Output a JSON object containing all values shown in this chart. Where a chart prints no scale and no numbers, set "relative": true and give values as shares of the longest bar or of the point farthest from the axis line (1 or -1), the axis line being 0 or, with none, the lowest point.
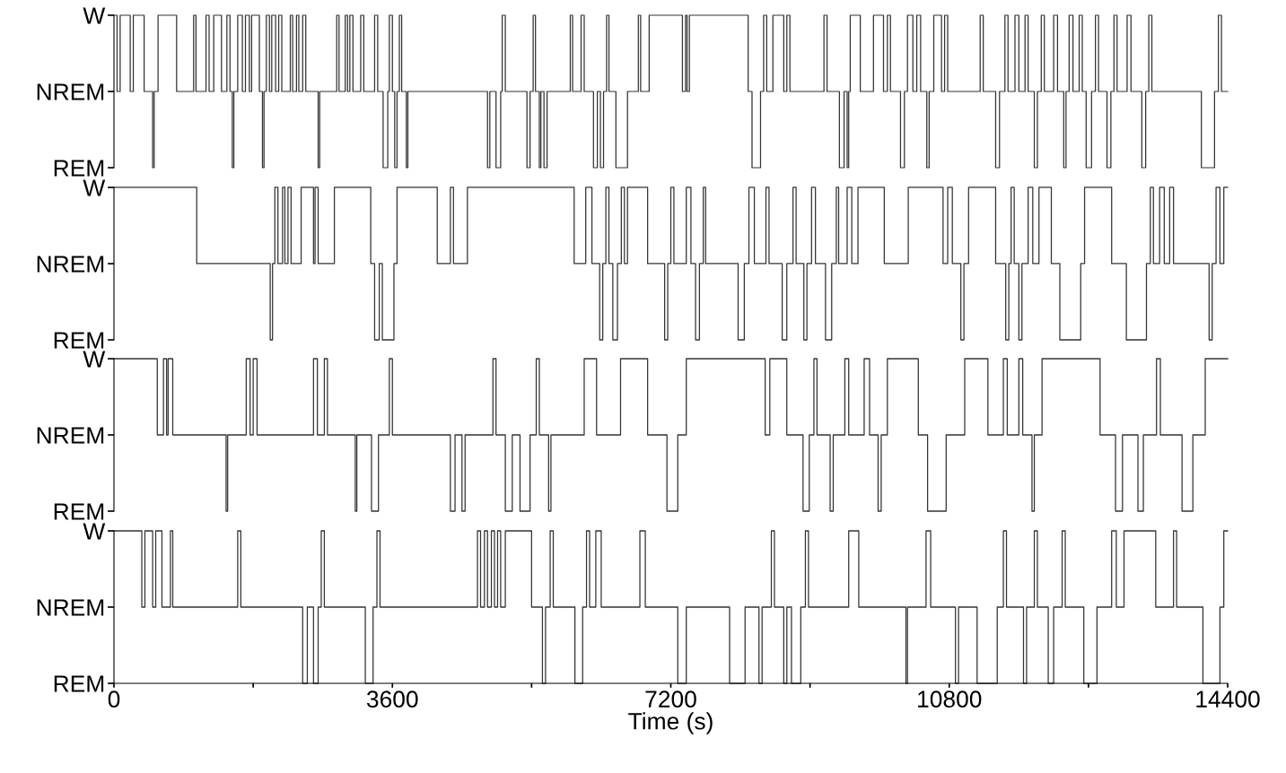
{
  "chart_data": [
    {
      "type": "step",
      "relative": true,
      "xlim": [
        0,
        14400
      ],
      "tick_labels": "y",
      "y_categories": [
        "W",
        "NREM",
        "REM"
      ],
      "series": [
        {
          "color": "#333333",
          "x": [
            0,
            40,
            80,
            210,
            250,
            390,
            500,
            520,
            570,
            810,
            1030,
            1060,
            1190,
            1230,
            1290,
            1390,
            1460,
            1500,
            1530,
            1550,
            1600,
            1660,
            1700,
            1750,
            1780,
            1880,
            1920,
            1940,
            1970,
            2010,
            2040,
            2090,
            2130,
            2170,
            2280,
            2310,
            2360,
            2390,
            2440,
            2480,
            2640,
            2660,
            2880,
            2910,
            2990,
            3020,
            3050,
            3090,
            3190,
            3230,
            3370,
            3410,
            3480,
            3540,
            3560,
            3600,
            3630,
            3660,
            3690,
            3720,
            3780,
            3800,
            4830,
            4860,
            4940,
            5000,
            5020,
            5060,
            5340,
            5380,
            5420,
            5450,
            5500,
            5520,
            5560,
            5600,
            5900,
            5930,
            6040,
            6080,
            6200,
            6250,
            6290,
            6330,
            6370,
            6400,
            6490,
            6640,
            6780,
            6810,
            6920,
            7350,
            7390,
            7410,
            7440,
            8200,
            8250,
            8360,
            8400,
            8440,
            8520,
            8660,
            8700,
            8740,
            9180,
            9220,
            9380,
            9440,
            9480,
            9500,
            9520,
            9650,
            9820,
            9950,
            10000,
            10040,
            10170,
            10220,
            10260,
            10330,
            10380,
            10430,
            10510,
            10540,
            10600,
            10700,
            10740,
            10780,
            11200,
            11240,
            11400,
            11450,
            11520,
            11560,
            11650,
            11700,
            11780,
            11820,
            11900,
            11940,
            11990,
            12030,
            12150,
            12200,
            12280,
            12310,
            12350,
            12400,
            12480,
            12520,
            12570,
            12640,
            12690,
            12730,
            12840,
            12890,
            12930,
            12970,
            13100,
            13150,
            13290,
            13340,
            13380,
            13420,
            14060,
            14230,
            14280,
            14320,
            14400
          ],
          "values": [
            1,
            0.5,
            1,
            0.5,
            1,
            0.5,
            0,
            0.5,
            1,
            0.5,
            1,
            0.5,
            1,
            0.5,
            1,
            0.5,
            1,
            0.5,
            0,
            0.5,
            1,
            0.5,
            1,
            0.5,
            1,
            0.5,
            0,
            0.5,
            1,
            0.5,
            1,
            0.5,
            1,
            0.5,
            1,
            0.5,
            1,
            0.5,
            1,
            0.5,
            0,
            0.5,
            1,
            0.5,
            1,
            0.5,
            1,
            0.5,
            1,
            0.5,
            1,
            0.5,
            0,
            0.5,
            1,
            0.5,
            0,
            0.5,
            1,
            0.5,
            0,
            0.5,
            0,
            0.5,
            0,
            0.5,
            1,
            0.5,
            0,
            0.5,
            1,
            0.5,
            0,
            0.5,
            0,
            0.5,
            1,
            0.5,
            1,
            0.5,
            0,
            0.5,
            0,
            0.5,
            1,
            0.5,
            0,
            0.5,
            1,
            0.5,
            1,
            0.5,
            1,
            0.5,
            1,
            0.5,
            0,
            0.5,
            1,
            0.5,
            1,
            0.5,
            1,
            0.5,
            1,
            0.5,
            0,
            0.5,
            0,
            0.5,
            1,
            0.5,
            1,
            0.5,
            1,
            0.5,
            0,
            0.5,
            1,
            0.5,
            1,
            0.5,
            0,
            0.5,
            1,
            0.5,
            1,
            0.5,
            1,
            0.5,
            0,
            0.5,
            1,
            0.5,
            1,
            0.5,
            1,
            0.5,
            0,
            0.5,
            1,
            0.5,
            1,
            0.5,
            0,
            0.5,
            1,
            0.5,
            1,
            0.5,
            0,
            0.5,
            1,
            0.5,
            0,
            0.5,
            1,
            0.5,
            1,
            0.5,
            0,
            0.5,
            1,
            0.5,
            0,
            0.5,
            1,
            0.5,
            0.5
          ]
        }
      ]
    },
    {
      "type": "step",
      "relative": true,
      "xlim": [
        0,
        14400
      ],
      "tick_labels": "y",
      "y_categories": [
        "W",
        "NREM",
        "REM"
      ],
      "series": [
        {
          "color": "#333333",
          "x": [
            0,
            1070,
            2020,
            2050,
            2080,
            2120,
            2180,
            2210,
            2250,
            2290,
            2420,
            2580,
            2600,
            2640,
            2850,
            3320,
            3370,
            3430,
            3470,
            3620,
            3660,
            4180,
            4350,
            4390,
            4570,
            5950,
            6100,
            6180,
            6280,
            6320,
            6360,
            6400,
            6450,
            6510,
            6560,
            6600,
            6640,
            6900,
            7120,
            7160,
            7200,
            7240,
            7400,
            7460,
            7520,
            7570,
            7620,
            7650,
            8070,
            8150,
            8210,
            8280,
            8430,
            8470,
            8640,
            8700,
            8780,
            8820,
            8920,
            8960,
            9020,
            9070,
            9200,
            9280,
            9340,
            9370,
            9480,
            9540,
            9620,
            9960,
            10270,
            10720,
            10780,
            10840,
            10950,
            10990,
            11050,
            11400,
            11530,
            11570,
            11600,
            11640,
            11700,
            11740,
            11820,
            11880,
            11960,
            12120,
            12230,
            12500,
            12550,
            12900,
            13090,
            13350,
            13400,
            13440,
            13520,
            13580,
            13650,
            13700,
            14160,
            14200,
            14250,
            14300,
            14350,
            14400
          ],
          "values": [
            1,
            0.5,
            0,
            0.5,
            1,
            0.5,
            1,
            0.5,
            1,
            0.5,
            1,
            0.5,
            1,
            0.5,
            1,
            0.5,
            0,
            0.5,
            0,
            0.5,
            1,
            0.5,
            1,
            0.5,
            1,
            0.5,
            1,
            0.5,
            0,
            0.5,
            1,
            0.5,
            0,
            0.5,
            1,
            0.5,
            1,
            0.5,
            0,
            0.5,
            1,
            0.5,
            1,
            0.5,
            0,
            0.5,
            1,
            0.5,
            0,
            0.5,
            1,
            0.5,
            1,
            0.5,
            0,
            0.5,
            1,
            0.5,
            0,
            0.5,
            1,
            0.5,
            0,
            0.5,
            1,
            0.5,
            1,
            0.5,
            1,
            0.5,
            1,
            0.5,
            1,
            0.5,
            0,
            0.5,
            1,
            0.5,
            0,
            0.5,
            1,
            0.5,
            0,
            0.5,
            1,
            0.5,
            1,
            0.5,
            0,
            0.5,
            1,
            0.5,
            0,
            0.5,
            1,
            0.5,
            1,
            0.5,
            1,
            0.5,
            0,
            0.5,
            1,
            0.5,
            1,
            1
          ]
        }
      ]
    },
    {
      "type": "step",
      "relative": true,
      "xlim": [
        0,
        14400
      ],
      "tick_labels": "y",
      "y_categories": [
        "W",
        "NREM",
        "REM"
      ],
      "series": [
        {
          "color": "#333333",
          "x": [
            0,
            560,
            640,
            680,
            700,
            760,
            1450,
            1470,
            1710,
            1760,
            1800,
            1850,
            2580,
            2630,
            2720,
            2760,
            3120,
            3140,
            3330,
            3420,
            3560,
            3600,
            4350,
            4410,
            4500,
            4540,
            4900,
            4940,
            5060,
            5150,
            5250,
            5380,
            5460,
            5500,
            5620,
            5650,
            6080,
            6240,
            6550,
            6900,
            7150,
            7290,
            7400,
            8420,
            8480,
            8700,
            8910,
            8990,
            9050,
            9090,
            9260,
            9300,
            9450,
            9500,
            9700,
            9770,
            9880,
            9920,
            10000,
            10400,
            10520,
            10760,
            11000,
            11300,
            11500,
            11550,
            11700,
            11750,
            11870,
            11900,
            12000,
            12750,
            12950,
            13040,
            13240,
            13310,
            13480,
            13530,
            13810,
            13950,
            14110,
            14400
          ],
          "values": [
            1,
            0.5,
            1,
            0.5,
            1,
            0.5,
            0,
            0.5,
            1,
            0.5,
            1,
            0.5,
            1,
            0.5,
            1,
            0.5,
            0,
            0.5,
            0,
            0.5,
            1,
            0.5,
            0,
            0.5,
            0,
            0.5,
            1,
            0.5,
            0,
            0.5,
            0,
            0.5,
            1,
            0.5,
            0,
            0.5,
            1,
            0.5,
            1,
            0.5,
            0,
            0.5,
            1,
            0.5,
            1,
            0.5,
            0,
            0.5,
            1,
            0.5,
            0,
            0.5,
            1,
            0.5,
            1,
            0.5,
            0,
            0.5,
            1,
            0.5,
            0,
            0.5,
            1,
            0.5,
            1,
            0.5,
            1,
            0.5,
            0,
            0.5,
            1,
            0.5,
            0,
            0.5,
            0,
            0.5,
            1,
            0.5,
            0,
            0.5,
            1,
            1
          ]
        }
      ]
    },
    {
      "type": "step",
      "relative": true,
      "xlim": [
        0,
        14400
      ],
      "xlabel": "Time (s)",
      "y_categories": [
        "W",
        "NREM",
        "REM"
      ],
      "xticks": [
        0,
        {
          "value": 1800,
          "label": null
        },
        3600,
        {
          "value": 5400,
          "label": null
        },
        7200,
        {
          "value": 9000,
          "label": null
        },
        10800,
        {
          "value": 12600,
          "label": null
        },
        14400
      ],
      "series": [
        {
          "color": "#333333",
          "x": [
            0,
            360,
            400,
            500,
            540,
            620,
            730,
            760,
            1600,
            1640,
            2440,
            2500,
            2580,
            2640,
            2680,
            2720,
            3250,
            3350,
            3400,
            3440,
            4700,
            4740,
            4790,
            4830,
            4880,
            4920,
            4960,
            5000,
            5060,
            5400,
            5540,
            5580,
            5640,
            5680,
            5960,
            6060,
            6110,
            6150,
            6230,
            6300,
            6800,
            6870,
            7290,
            7400,
            7960,
            8160,
            8340,
            8380,
            8500,
            8540,
            8660,
            8700,
            8760,
            8880,
            8940,
            8980,
            9500,
            9630,
            10240,
            10260,
            10500,
            10560,
            10880,
            10920,
            11160,
            11420,
            11500,
            11540,
            11760,
            11800,
            11900,
            11940,
            12080,
            12150,
            12260,
            12300,
            12540,
            12710,
            12900,
            12960,
            13060,
            13470,
            13700,
            13740,
            14080,
            14300,
            14350,
            14400
          ],
          "values": [
            1,
            0.5,
            1,
            0.5,
            1,
            0.5,
            1,
            0.5,
            1,
            0.5,
            0,
            0.5,
            0,
            0.5,
            1,
            0.5,
            0,
            0.5,
            1,
            0.5,
            1,
            0.5,
            1,
            0.5,
            1,
            0.5,
            1,
            0.5,
            1,
            0.5,
            0,
            0.5,
            1,
            0.5,
            0,
            0.5,
            1,
            0.5,
            1,
            0.5,
            1,
            0.5,
            0,
            0.5,
            0,
            0.5,
            0,
            0.5,
            1,
            0.5,
            0,
            0.5,
            0,
            0.5,
            1,
            0.5,
            1,
            0.5,
            0,
            0.5,
            1,
            0.5,
            0,
            0.5,
            0,
            0.5,
            1,
            0.5,
            0,
            0.5,
            1,
            0.5,
            0,
            0.5,
            1,
            0.5,
            0,
            0.5,
            1,
            0.5,
            1,
            0.5,
            1,
            0.5,
            0,
            0.5,
            1,
            1
          ]
        }
      ]
    }
  ]
}
